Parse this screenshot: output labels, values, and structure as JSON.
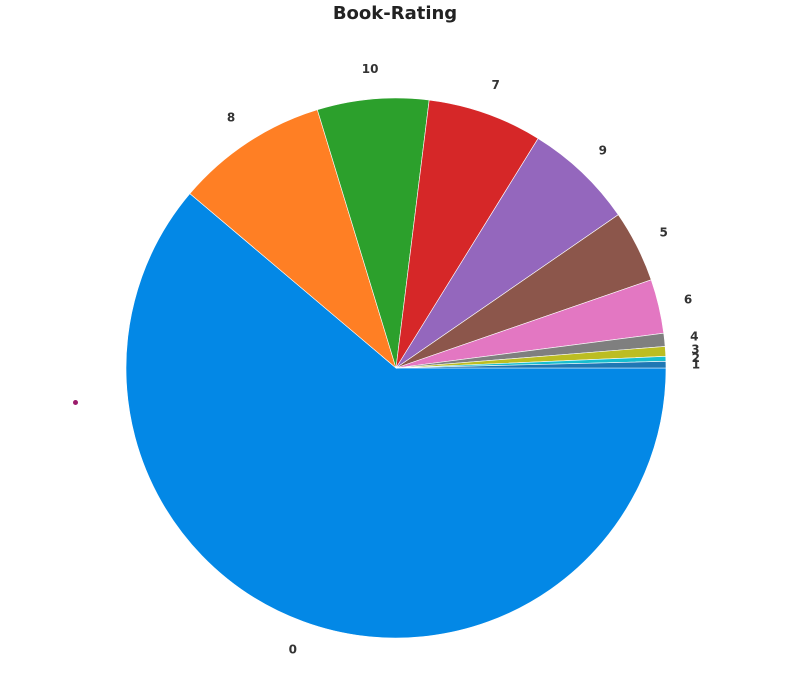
{
  "chart_data": {
    "type": "pie",
    "title": "Book-Rating",
    "start_angle_deg": 0,
    "direction": "clockwise",
    "labels": [
      "0",
      "8",
      "10",
      "7",
      "9",
      "5",
      "6",
      "4",
      "3",
      "2",
      "1"
    ],
    "values": [
      62.4,
      9.3,
      6.8,
      7.0,
      6.7,
      4.4,
      3.3,
      0.8,
      0.6,
      0.3,
      0.4
    ],
    "colors": [
      "#0388e6",
      "#ff7f24",
      "#2ca02c",
      "#d62728",
      "#9467bd",
      "#8c564b",
      "#e377c2",
      "#7f7f7f",
      "#bcbd22",
      "#17becf",
      "#1f77b4"
    ]
  },
  "decor": {
    "dot_color": "#9b1b6b"
  }
}
